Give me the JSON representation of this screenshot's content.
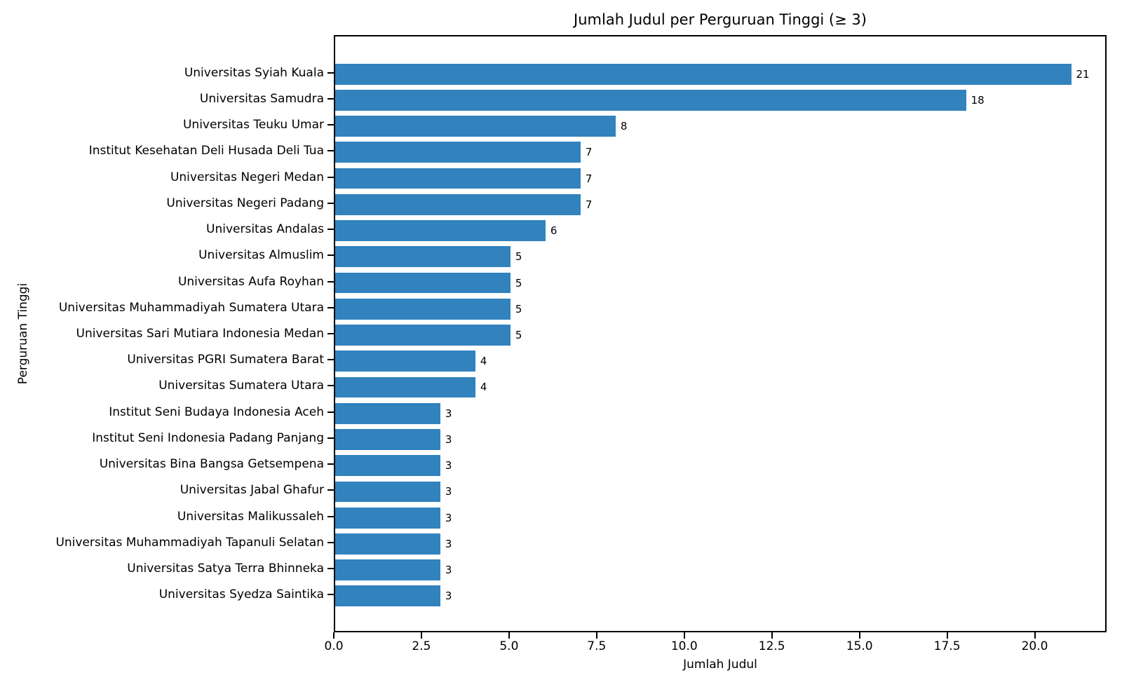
{
  "chart_data": {
    "type": "bar",
    "orientation": "horizontal",
    "title": "Jumlah Judul per Perguruan Tinggi (≥ 3)",
    "xlabel": "Jumlah Judul",
    "ylabel": "Perguruan Tinggi",
    "categories": [
      "Universitas Syiah Kuala",
      "Universitas Samudra",
      "Universitas Teuku Umar",
      "Institut Kesehatan Deli Husada Deli Tua",
      "Universitas Negeri Medan",
      "Universitas Negeri Padang",
      "Universitas Andalas",
      "Universitas Almuslim",
      "Universitas Aufa Royhan",
      "Universitas Muhammadiyah Sumatera Utara",
      "Universitas Sari Mutiara Indonesia Medan",
      "Universitas PGRI Sumatera Barat",
      "Universitas Sumatera Utara",
      "Institut Seni Budaya Indonesia Aceh",
      "Institut Seni Indonesia Padang Panjang",
      "Universitas Bina Bangsa Getsempena",
      "Universitas Jabal Ghafur",
      "Universitas Malikussaleh",
      "Universitas Muhammadiyah Tapanuli Selatan",
      "Universitas Satya Terra Bhinneka",
      "Universitas Syedza Saintika"
    ],
    "values": [
      21,
      18,
      8,
      7,
      7,
      7,
      6,
      5,
      5,
      5,
      5,
      4,
      4,
      3,
      3,
      3,
      3,
      3,
      3,
      3,
      3
    ],
    "value_labels": [
      "21",
      "18",
      "8",
      "7",
      "7",
      "7",
      "6",
      "5",
      "5",
      "5",
      "5",
      "4",
      "4",
      "3",
      "3",
      "3",
      "3",
      "3",
      "3",
      "3",
      "3"
    ],
    "xticks": [
      0,
      2.5,
      5,
      7.5,
      10,
      12.5,
      15,
      17.5,
      20
    ],
    "xtick_labels": [
      "0.0",
      "2.5",
      "5.0",
      "7.5",
      "10.0",
      "12.5",
      "15.0",
      "17.5",
      "20.0"
    ],
    "xlim": [
      0,
      22.05
    ],
    "bar_color": "#3182bd",
    "grid": false,
    "legend_position": "none"
  }
}
